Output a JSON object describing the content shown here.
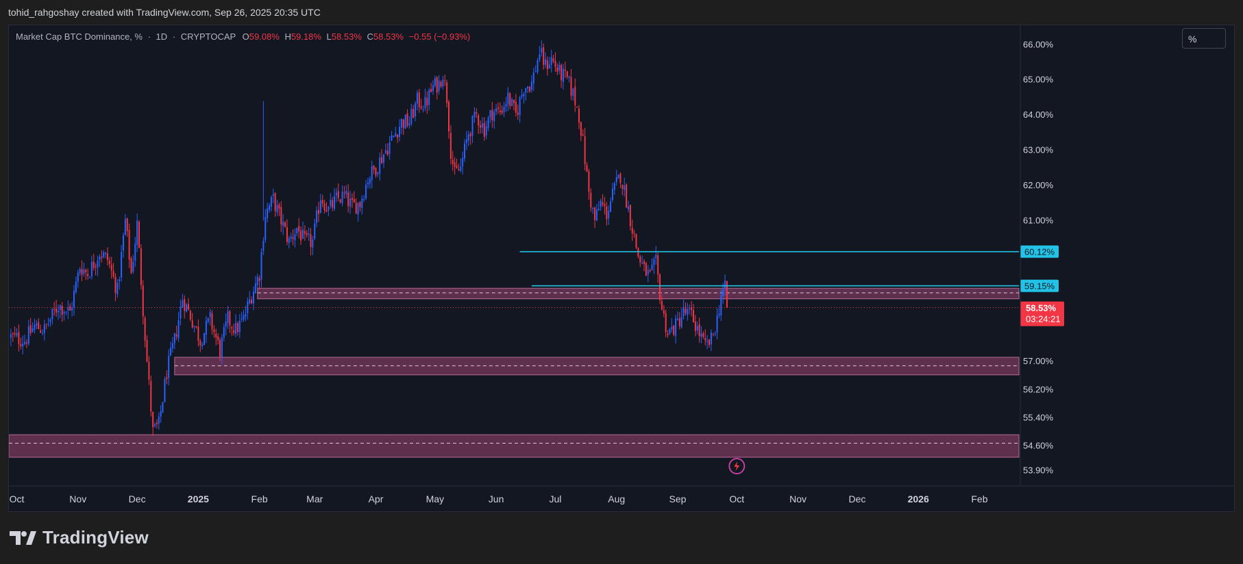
{
  "header": {
    "credit": "tohid_rahgoshay created with TradingView.com, Sep 26, 2025 20:35 UTC"
  },
  "legend": {
    "symbol": "Market Cap BTC Dominance, %",
    "interval": "1D",
    "exchange": "CRYPTOCAP",
    "o_label": "O",
    "o_value": "59.08%",
    "h_label": "H",
    "h_value": "59.18%",
    "l_label": "L",
    "l_value": "58.53%",
    "c_label": "C",
    "c_value": "58.53%",
    "change": "−0.55 (−0.93%)"
  },
  "controls": {
    "scale_toggle": "%"
  },
  "footer": {
    "brand": "TradingView"
  },
  "colors": {
    "background": "#131722",
    "up": "#2962ff",
    "down": "#f23645",
    "zone_fill": "#7a3a5e",
    "horizontal_line": "#22c3e6",
    "price_tag": "#f23645",
    "axis_text": "#d1d4dc"
  },
  "chart_data": {
    "type": "candlestick",
    "title": "Market Cap BTC Dominance, % · 1D · CRYPTOCAP",
    "y_unit": "%",
    "ylim": [
      53.6,
      66.55
    ],
    "y_ticks": [
      "66.00%",
      "65.00%",
      "64.00%",
      "63.00%",
      "62.00%",
      "61.00%",
      "60.12%",
      "59.15%",
      "58.53%",
      "57.00%",
      "56.20%",
      "55.40%",
      "54.60%",
      "53.90%"
    ],
    "y_tick_values": [
      66.0,
      65.0,
      64.0,
      63.0,
      62.0,
      61.0,
      60.12,
      59.15,
      58.53,
      57.0,
      56.2,
      55.4,
      54.6,
      53.9
    ],
    "x_ticks": [
      "Oct",
      "Nov",
      "Dec",
      "2025",
      "Feb",
      "Mar",
      "Apr",
      "May",
      "Jun",
      "Jul",
      "Aug",
      "Sep",
      "Oct",
      "Nov",
      "Dec",
      "2026",
      "Feb"
    ],
    "x_tick_dates": [
      "2024-10-01",
      "2024-11-01",
      "2024-12-01",
      "2025-01-01",
      "2025-02-01",
      "2025-03-01",
      "2025-04-01",
      "2025-05-01",
      "2025-06-01",
      "2025-07-01",
      "2025-08-01",
      "2025-09-01",
      "2025-10-01",
      "2025-11-01",
      "2025-12-01",
      "2026-01-01",
      "2026-02-01"
    ],
    "x_range": [
      "2024-09-27",
      "2026-02-21"
    ],
    "bold_ticks": [
      "2025",
      "2026"
    ],
    "price_anchors": [
      [
        "2024-09-28",
        57.7
      ],
      [
        "2024-10-05",
        57.6
      ],
      [
        "2024-10-10",
        58.0
      ],
      [
        "2024-10-15",
        57.9
      ],
      [
        "2024-10-22",
        58.6
      ],
      [
        "2024-10-28",
        58.4
      ],
      [
        "2024-11-02",
        59.7
      ],
      [
        "2024-11-06",
        59.5
      ],
      [
        "2024-11-12",
        60.1
      ],
      [
        "2024-11-16",
        59.9
      ],
      [
        "2024-11-21",
        59.0
      ],
      [
        "2024-11-25",
        61.0
      ],
      [
        "2024-11-28",
        59.5
      ],
      [
        "2024-12-01",
        60.9
      ],
      [
        "2024-12-04",
        58.5
      ],
      [
        "2024-12-06",
        57.0
      ],
      [
        "2024-12-09",
        55.0
      ],
      [
        "2024-12-12",
        55.2
      ],
      [
        "2024-12-16",
        56.7
      ],
      [
        "2024-12-20",
        57.6
      ],
      [
        "2024-12-24",
        58.8
      ],
      [
        "2024-12-28",
        58.3
      ],
      [
        "2025-01-02",
        57.6
      ],
      [
        "2025-01-07",
        58.2
      ],
      [
        "2025-01-12",
        57.3
      ],
      [
        "2025-01-16",
        58.2
      ],
      [
        "2025-01-20",
        57.9
      ],
      [
        "2025-01-24",
        58.2
      ],
      [
        "2025-01-28",
        58.9
      ],
      [
        "2025-02-01",
        59.5
      ],
      [
        "2025-02-04",
        61.2
      ],
      [
        "2025-02-08",
        61.6
      ],
      [
        "2025-02-12",
        61.0
      ],
      [
        "2025-02-16",
        60.4
      ],
      [
        "2025-02-20",
        60.8
      ],
      [
        "2025-02-24",
        60.4
      ],
      [
        "2025-02-28",
        60.4
      ],
      [
        "2025-03-04",
        61.7
      ],
      [
        "2025-03-08",
        61.3
      ],
      [
        "2025-03-12",
        61.6
      ],
      [
        "2025-03-16",
        61.7
      ],
      [
        "2025-03-20",
        61.4
      ],
      [
        "2025-03-24",
        61.5
      ],
      [
        "2025-03-28",
        62.2
      ],
      [
        "2025-04-02",
        62.6
      ],
      [
        "2025-04-06",
        63.0
      ],
      [
        "2025-04-10",
        63.4
      ],
      [
        "2025-04-14",
        63.8
      ],
      [
        "2025-04-18",
        63.8
      ],
      [
        "2025-04-22",
        64.4
      ],
      [
        "2025-04-26",
        64.3
      ],
      [
        "2025-04-30",
        64.8
      ],
      [
        "2025-05-03",
        64.9
      ],
      [
        "2025-05-05",
        65.2
      ],
      [
        "2025-05-07",
        64.5
      ],
      [
        "2025-05-09",
        63.0
      ],
      [
        "2025-05-11",
        62.3
      ],
      [
        "2025-05-14",
        62.5
      ],
      [
        "2025-05-18",
        63.5
      ],
      [
        "2025-05-22",
        64.0
      ],
      [
        "2025-05-26",
        63.6
      ],
      [
        "2025-05-30",
        64.1
      ],
      [
        "2025-06-03",
        64.1
      ],
      [
        "2025-06-07",
        64.5
      ],
      [
        "2025-06-11",
        64.0
      ],
      [
        "2025-06-15",
        64.8
      ],
      [
        "2025-06-19",
        64.9
      ],
      [
        "2025-06-23",
        65.8
      ],
      [
        "2025-06-26",
        65.4
      ],
      [
        "2025-06-29",
        65.6
      ],
      [
        "2025-07-03",
        65.2
      ],
      [
        "2025-07-07",
        65.0
      ],
      [
        "2025-07-10",
        64.6
      ],
      [
        "2025-07-13",
        64.0
      ],
      [
        "2025-07-15",
        63.2
      ],
      [
        "2025-07-18",
        61.8
      ],
      [
        "2025-07-21",
        61.0
      ],
      [
        "2025-07-24",
        61.5
      ],
      [
        "2025-07-27",
        61.2
      ],
      [
        "2025-07-31",
        61.9
      ],
      [
        "2025-08-03",
        62.3
      ],
      [
        "2025-08-06",
        61.6
      ],
      [
        "2025-08-09",
        60.8
      ],
      [
        "2025-08-12",
        60.0
      ],
      [
        "2025-08-15",
        59.6
      ],
      [
        "2025-08-18",
        59.4
      ],
      [
        "2025-08-21",
        59.8
      ],
      [
        "2025-08-24",
        58.5
      ],
      [
        "2025-08-27",
        57.8
      ],
      [
        "2025-08-31",
        58.0
      ],
      [
        "2025-09-04",
        58.4
      ],
      [
        "2025-09-08",
        58.3
      ],
      [
        "2025-09-12",
        57.8
      ],
      [
        "2025-09-15",
        57.4
      ],
      [
        "2025-09-18",
        57.6
      ],
      [
        "2025-09-21",
        58.2
      ],
      [
        "2025-09-23",
        58.9
      ],
      [
        "2025-09-25",
        59.05
      ],
      [
        "2025-09-26",
        58.53
      ]
    ],
    "horizontal_lines": [
      {
        "value": 60.12,
        "label": "60.12%",
        "start": "2025-06-13"
      },
      {
        "value": 59.15,
        "label": "59.15%",
        "start": "2025-06-19"
      }
    ],
    "zones": [
      {
        "top": 59.08,
        "bottom": 58.78,
        "mid": 58.95,
        "start": "2025-01-31"
      },
      {
        "top": 57.12,
        "bottom": 56.62,
        "mid": 56.88,
        "start": "2024-12-20"
      },
      {
        "top": 54.92,
        "bottom": 54.28,
        "mid": 54.68,
        "start": "2024-09-27"
      }
    ],
    "last_price": {
      "value": 58.53,
      "label": "58.53%",
      "countdown": "03:24:21"
    }
  }
}
